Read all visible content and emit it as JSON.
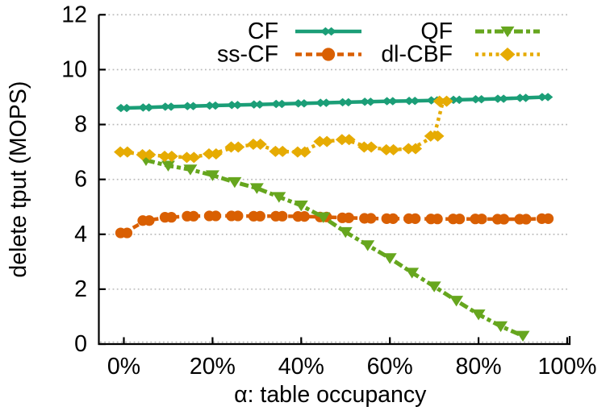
{
  "chart_data": {
    "type": "line",
    "title": "",
    "xlabel": "α: table occupancy",
    "ylabel": "delete tput (MOPS)",
    "xlim": [
      -5.64,
      100.55
    ],
    "ylim": [
      0,
      12
    ],
    "grid": {
      "on": true,
      "color": "#b8b8b8",
      "dash": "1.8 3.4",
      "values": [
        0,
        2,
        4,
        6,
        8,
        10,
        12
      ]
    },
    "axis_color": "#000000",
    "xticks": {
      "values": [
        0,
        20,
        40,
        60,
        80,
        100
      ],
      "labels": [
        "0%",
        "20%",
        "40%",
        "60%",
        "80%",
        "100%"
      ]
    },
    "yticks": {
      "values": [
        0,
        2,
        4,
        6,
        8,
        10,
        12
      ],
      "labels": [
        "0",
        "2",
        "4",
        "6",
        "8",
        "10",
        "12"
      ]
    },
    "legend": {
      "position": "top-inside",
      "rows": 2,
      "cols": 2,
      "order": [
        "CF",
        "ss-CF",
        "QF",
        "dl-CBF"
      ]
    },
    "series": [
      {
        "name": "CF",
        "color": "#1B9E77",
        "dash": "none",
        "line_width": 4.5,
        "marker": "double-diamond",
        "marker_size": 5.2,
        "marker_offset": 3.6,
        "legend_double_marker": true,
        "x": [
          0,
          5,
          10,
          15,
          20,
          25,
          30,
          35,
          40,
          45,
          50,
          55,
          60,
          65,
          70,
          75,
          80,
          85,
          90,
          95
        ],
        "y": [
          8.6,
          8.62,
          8.65,
          8.67,
          8.69,
          8.71,
          8.73,
          8.75,
          8.77,
          8.79,
          8.81,
          8.83,
          8.85,
          8.86,
          8.88,
          8.9,
          8.92,
          8.94,
          8.97,
          9.0
        ]
      },
      {
        "name": "ss-CF",
        "color": "#D95F02",
        "dash": "8 5",
        "line_width": 4.5,
        "marker": "double-circle",
        "marker_size": 6.6,
        "marker_offset": 4.0,
        "legend_double_marker": false,
        "x": [
          0,
          5,
          10,
          15,
          20,
          25,
          30,
          35,
          40,
          45,
          50,
          55,
          60,
          65,
          70,
          75,
          80,
          85,
          90,
          95
        ],
        "y": [
          4.05,
          4.5,
          4.62,
          4.66,
          4.67,
          4.67,
          4.66,
          4.66,
          4.65,
          4.63,
          4.6,
          4.58,
          4.57,
          4.57,
          4.56,
          4.56,
          4.56,
          4.55,
          4.55,
          4.57
        ]
      },
      {
        "name": "QF",
        "color": "#66A61E",
        "dash": "11 4 5 4",
        "line_width": 5,
        "marker": "triangle-down",
        "marker_size": 8.5,
        "marker_offset": 0,
        "legend_double_marker": false,
        "x": [
          5,
          10,
          15,
          20,
          25,
          30,
          35,
          40,
          45,
          50,
          55,
          60,
          65,
          70,
          75,
          80,
          85,
          90
        ],
        "y": [
          6.7,
          6.5,
          6.36,
          6.15,
          5.9,
          5.68,
          5.36,
          5.05,
          4.62,
          4.08,
          3.6,
          3.13,
          2.6,
          2.1,
          1.58,
          1.08,
          0.65,
          0.3
        ]
      },
      {
        "name": "dl-CBF",
        "color": "#E6AB02",
        "dash": "4 4.5",
        "line_width": 4.5,
        "marker": "double-diamond",
        "marker_size": 7.0,
        "marker_offset": 4.4,
        "legend_double_marker": false,
        "x": [
          0,
          5,
          10,
          15,
          20,
          25,
          30,
          35,
          40,
          45,
          50,
          55,
          60,
          65,
          70,
          72
        ],
        "y": [
          7.0,
          6.9,
          6.84,
          6.8,
          6.93,
          7.18,
          7.28,
          7.02,
          7.0,
          7.38,
          7.45,
          7.18,
          7.08,
          7.12,
          7.58,
          8.85
        ]
      }
    ]
  }
}
